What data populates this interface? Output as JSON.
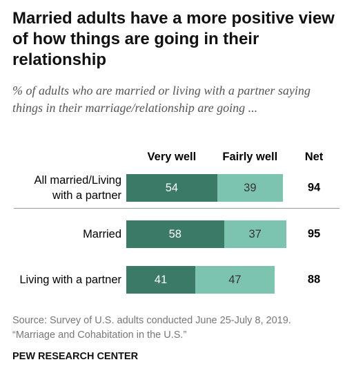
{
  "chart_data": {
    "type": "bar",
    "orientation": "horizontal",
    "stacked": true,
    "title": "Married adults have a more positive view of how things are going in their relationship",
    "subtitle": "% of adults who are married or living with a partner saying things in their marriage/relationship are going ...",
    "categories": [
      "All married/Living with a partner",
      "Married",
      "Living with a partner"
    ],
    "series": [
      {
        "name": "Very well",
        "color": "#3b7a66",
        "label_color": "#ffffff",
        "values": [
          54,
          58,
          41
        ]
      },
      {
        "name": "Fairly well",
        "color": "#7dc4b0",
        "label_color": "#333333",
        "values": [
          39,
          37,
          47
        ]
      }
    ],
    "net_header": "Net",
    "net": [
      94,
      95,
      88
    ],
    "source": "Source: Survey of U.S. adults conducted June 25-July 8, 2019.",
    "report": "“Marriage and Cohabitation in the U.S.”",
    "footer": "PEW RESEARCH CENTER"
  }
}
